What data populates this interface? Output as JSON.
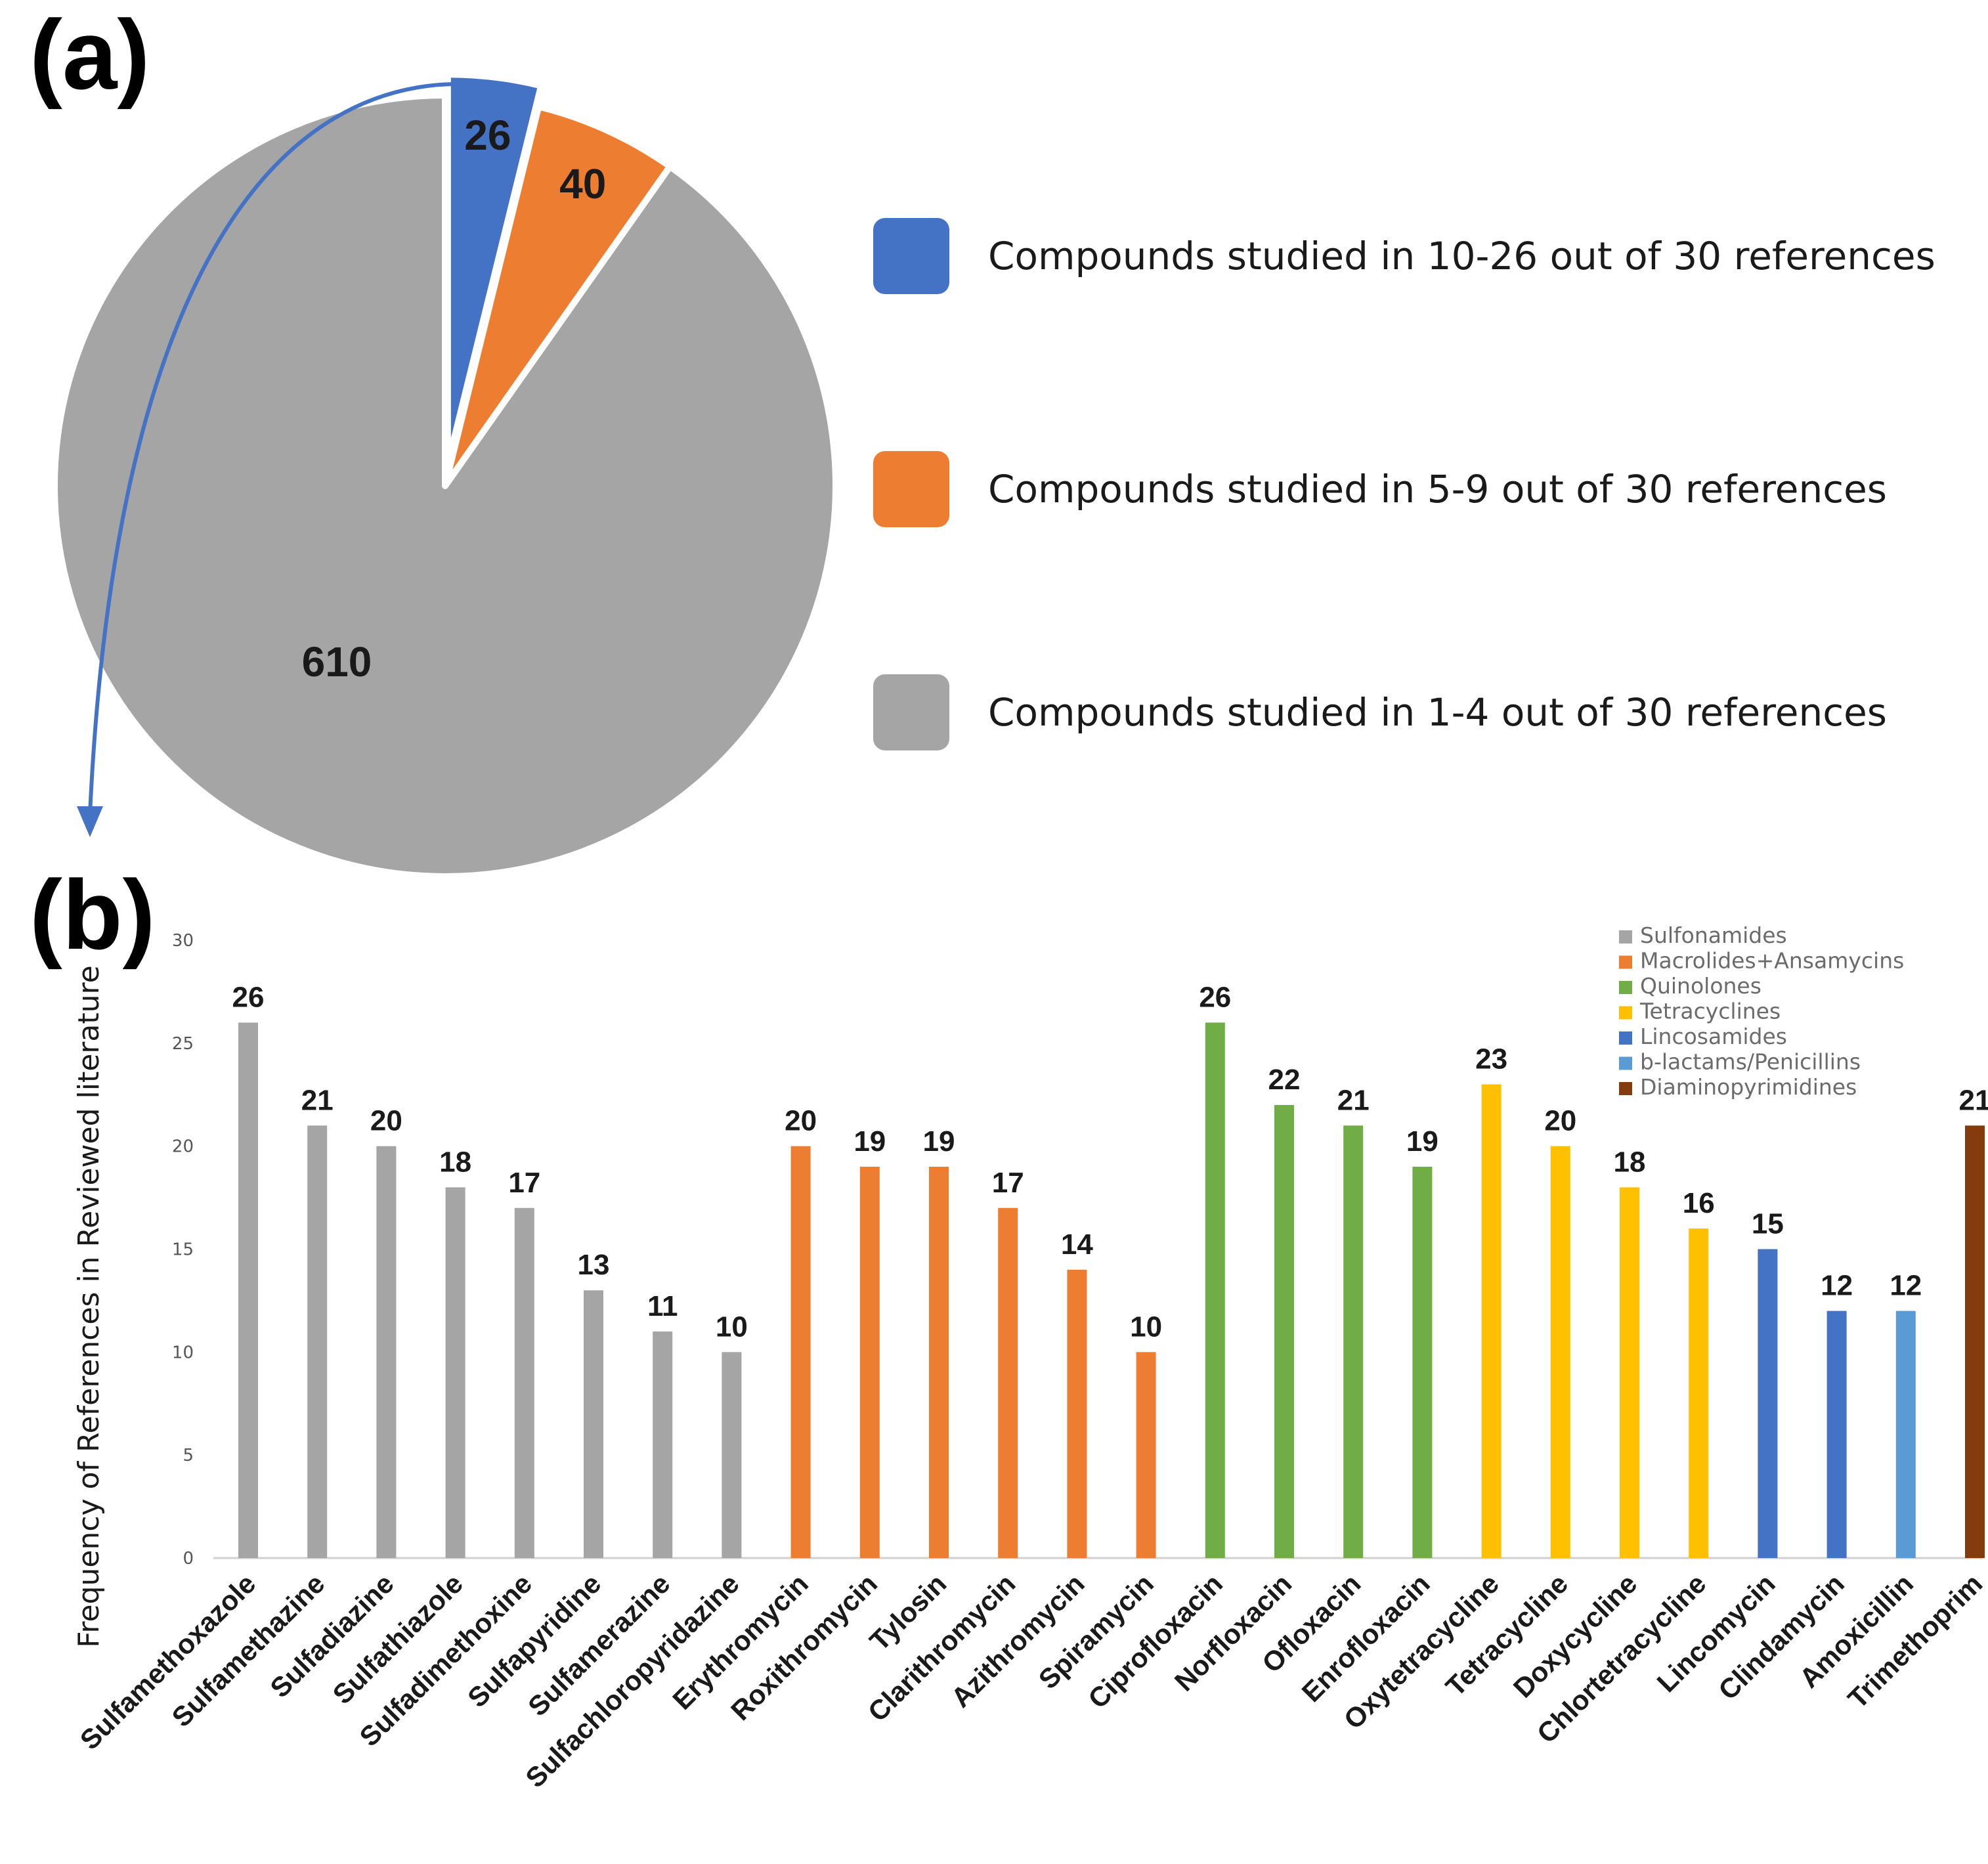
{
  "panels": {
    "a_label": "(a)",
    "b_label": "(b)"
  },
  "chart_data": [
    {
      "type": "pie",
      "panel": "(a)",
      "slices": [
        {
          "label": "26",
          "value": 26,
          "legend": "Compounds studied in 10-26 out of 30 references",
          "color": "#4472C4",
          "exploded": true
        },
        {
          "label": "40",
          "value": 40,
          "legend": "Compounds studied in 5-9 out of 30 references",
          "color": "#ED7D31",
          "exploded": false
        },
        {
          "label": "610",
          "value": 610,
          "legend": "Compounds studied in 1-4 out of 30 references",
          "color": "#A5A5A5",
          "exploded": false
        }
      ],
      "legend_position": "right",
      "annotation": "arrow from the 26 slice to panel (b)"
    },
    {
      "type": "bar",
      "panel": "(b)",
      "title": "",
      "xlabel": "",
      "ylabel": "Frequency of References in Reviewed literature",
      "ylim": [
        0,
        30
      ],
      "yticks": [
        0,
        5,
        10,
        15,
        20,
        25,
        30
      ],
      "grid": false,
      "legend_position": "top-right",
      "groups": [
        {
          "name": "Sulfonamides",
          "color": "#A5A5A5"
        },
        {
          "name": "Macrolides+Ansamycins",
          "color": "#ED7D31"
        },
        {
          "name": "Quinolones",
          "color": "#70AD47"
        },
        {
          "name": "Tetracyclines",
          "color": "#FFC000"
        },
        {
          "name": "Lincosamides",
          "color": "#4472C4"
        },
        {
          "name": "b-lactams/Penicillins",
          "color": "#5B9BD5"
        },
        {
          "name": "Diaminopyrimidines",
          "color": "#843C0C"
        }
      ],
      "categories": [
        "Sulfamethoxazole",
        "Sulfamethazine",
        "Sulfadiazine",
        "Sulfathiazole",
        "Sulfadimethoxine",
        "Sulfapyridine",
        "Sulfamerazine",
        "Sulfachloropyridazine",
        "Erythromycin",
        "Roxithromycin",
        "Tylosin",
        "Clarithromycin",
        "Azithromycin",
        "Spiramycin",
        "Ciprofloxacin",
        "Norfloxacin",
        "Ofloxacin",
        "Enrofloxacin",
        "Oxytetracycline",
        "Tetracycline",
        "Doxycycline",
        "Chlortetracycline",
        "Lincomycin",
        "Clindamycin",
        "Amoxicillin",
        "Trimethoprim"
      ],
      "values": [
        26,
        21,
        20,
        18,
        17,
        13,
        11,
        10,
        20,
        19,
        19,
        17,
        14,
        10,
        26,
        22,
        21,
        19,
        23,
        20,
        18,
        16,
        15,
        12,
        12,
        21
      ],
      "group_index": [
        0,
        0,
        0,
        0,
        0,
        0,
        0,
        0,
        1,
        1,
        1,
        1,
        1,
        1,
        2,
        2,
        2,
        2,
        3,
        3,
        3,
        3,
        4,
        4,
        5,
        6
      ]
    }
  ]
}
